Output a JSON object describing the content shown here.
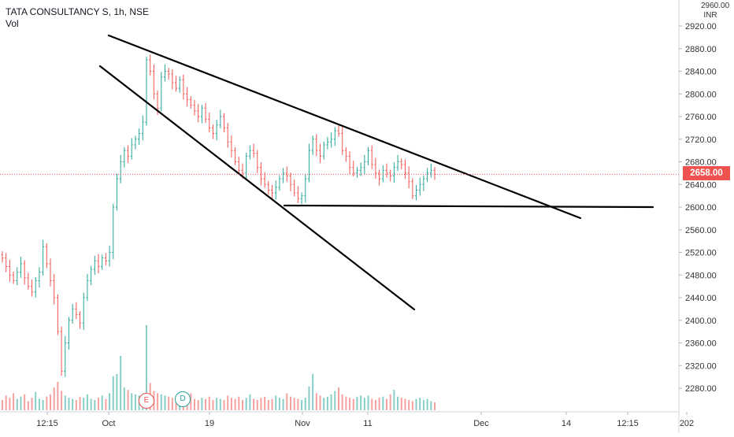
{
  "header": {
    "symbol_title": "TATA CONSULTANCY S, 1h, NSE",
    "volume_label": "Vol",
    "currency_top": "INR",
    "currency_partial": "2960.00"
  },
  "price_tag": {
    "label": "2658.00",
    "value": 2658,
    "color": "#ef5350"
  },
  "event_markers": [
    {
      "label": "E",
      "color": "#ef5350"
    },
    {
      "label": "D",
      "color": "#26a69a"
    }
  ],
  "colors": {
    "up": "#26a69a",
    "down": "#ef5350",
    "trendline": "#000000"
  },
  "chart_data": {
    "type": "candlestick",
    "y_axis": {
      "ticks": [
        2280,
        2320,
        2360,
        2400,
        2440,
        2480,
        2520,
        2560,
        2600,
        2640,
        2680,
        2720,
        2760,
        2800,
        2840,
        2880,
        2920
      ],
      "tick_labels": [
        "2280.00",
        "2320.00",
        "2360.00",
        "2400.00",
        "2440.00",
        "2480.00",
        "2520.00",
        "2560.00",
        "2600.00",
        "2640.00",
        "2680.00",
        "2720.00",
        "2760.00",
        "2800.00",
        "2840.00",
        "2880.00",
        "2920.00"
      ],
      "range": [
        2250,
        2965
      ]
    },
    "x_axis": {
      "tick_labels": [
        "12:15",
        "Oct",
        "19",
        "Nov",
        "11",
        "Dec",
        "14",
        "12:15",
        "202"
      ]
    },
    "last_price": 2658,
    "trendlines": [
      {
        "name": "upper-resistance",
        "from": [
          0,
          2898
        ],
        "to": [
          1,
          2578
        ]
      },
      {
        "name": "lower-support",
        "from": [
          0,
          2847
        ],
        "to": [
          1,
          2420
        ]
      },
      {
        "name": "horizontal-support",
        "from": [
          0,
          2601
        ],
        "to": [
          1,
          2598
        ]
      }
    ],
    "series": [
      {
        "kind": "price",
        "close_path": [
          2510,
          2495,
          2480,
          2470,
          2485,
          2500,
          2475,
          2460,
          2450,
          2470,
          2485,
          2530,
          2500,
          2470,
          2440,
          2380,
          2310,
          2360,
          2400,
          2420,
          2410,
          2395,
          2440,
          2470,
          2490,
          2505,
          2495,
          2510,
          2505,
          2520,
          2600,
          2650,
          2680,
          2700,
          2690,
          2710,
          2720,
          2730,
          2750,
          2860,
          2840,
          2800,
          2775,
          2830,
          2840,
          2835,
          2820,
          2810,
          2825,
          2800,
          2790,
          2780,
          2770,
          2760,
          2775,
          2755,
          2740,
          2730,
          2745,
          2760,
          2740,
          2715,
          2700,
          2680,
          2665,
          2660,
          2690,
          2700,
          2695,
          2670,
          2650,
          2640,
          2630,
          2625,
          2635,
          2650,
          2660,
          2655,
          2640,
          2625,
          2615,
          2620,
          2650,
          2700,
          2720,
          2700,
          2690,
          2710,
          2715,
          2720,
          2735,
          2730,
          2700,
          2690,
          2670,
          2660,
          2665,
          2670,
          2680,
          2700,
          2675,
          2660,
          2650,
          2665,
          2660,
          2655,
          2670,
          2680,
          2675,
          2660,
          2645,
          2620,
          2630,
          2640,
          2650,
          2660,
          2665,
          2658
        ]
      },
      {
        "kind": "volume",
        "values": [
          18,
          26,
          22,
          30,
          20,
          24,
          28,
          16,
          22,
          32,
          20,
          18,
          24,
          28,
          40,
          50,
          34,
          26,
          22,
          20,
          18,
          24,
          22,
          28,
          20,
          18,
          22,
          26,
          20,
          30,
          60,
          64,
          96,
          40,
          36,
          30,
          28,
          26,
          30,
          150,
          48,
          34,
          30,
          28,
          26,
          24,
          22,
          20,
          26,
          24,
          22,
          30,
          20,
          18,
          22,
          20,
          24,
          18,
          22,
          20,
          18,
          26,
          22,
          20,
          24,
          18,
          22,
          28,
          20,
          18,
          22,
          24,
          18,
          20,
          26,
          22,
          20,
          30,
          24,
          22,
          20,
          18,
          22,
          42,
          64,
          30,
          26,
          22,
          24,
          28,
          34,
          40,
          28,
          24,
          22,
          20,
          24,
          26,
          22,
          26,
          20,
          18,
          22,
          24,
          20,
          28,
          36,
          24,
          22,
          20,
          18,
          16,
          20,
          22,
          18,
          20,
          16,
          14
        ]
      }
    ]
  }
}
